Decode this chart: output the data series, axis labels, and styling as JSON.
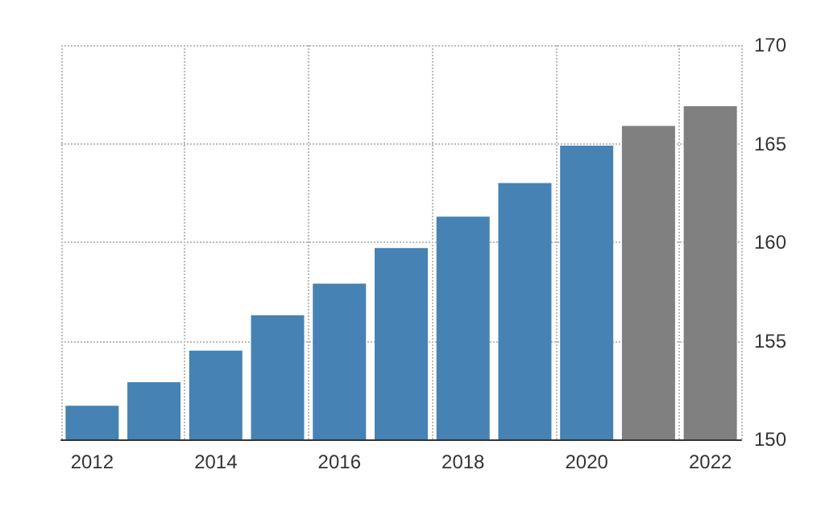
{
  "chart_data": {
    "type": "bar",
    "categories": [
      "2012",
      null,
      "2014",
      null,
      "2016",
      null,
      "2018",
      null,
      "2020",
      null,
      "2022"
    ],
    "values": [
      151.7,
      152.9,
      154.5,
      156.3,
      157.9,
      159.7,
      161.3,
      163.0,
      164.9,
      165.9,
      166.9
    ],
    "colors": [
      "#4682b4",
      "#4682b4",
      "#4682b4",
      "#4682b4",
      "#4682b4",
      "#4682b4",
      "#4682b4",
      "#4682b4",
      "#4682b4",
      "#808080",
      "#808080"
    ],
    "ylim": [
      150,
      170
    ],
    "yticks": [
      150,
      155,
      160,
      165,
      170
    ],
    "grid": true
  }
}
